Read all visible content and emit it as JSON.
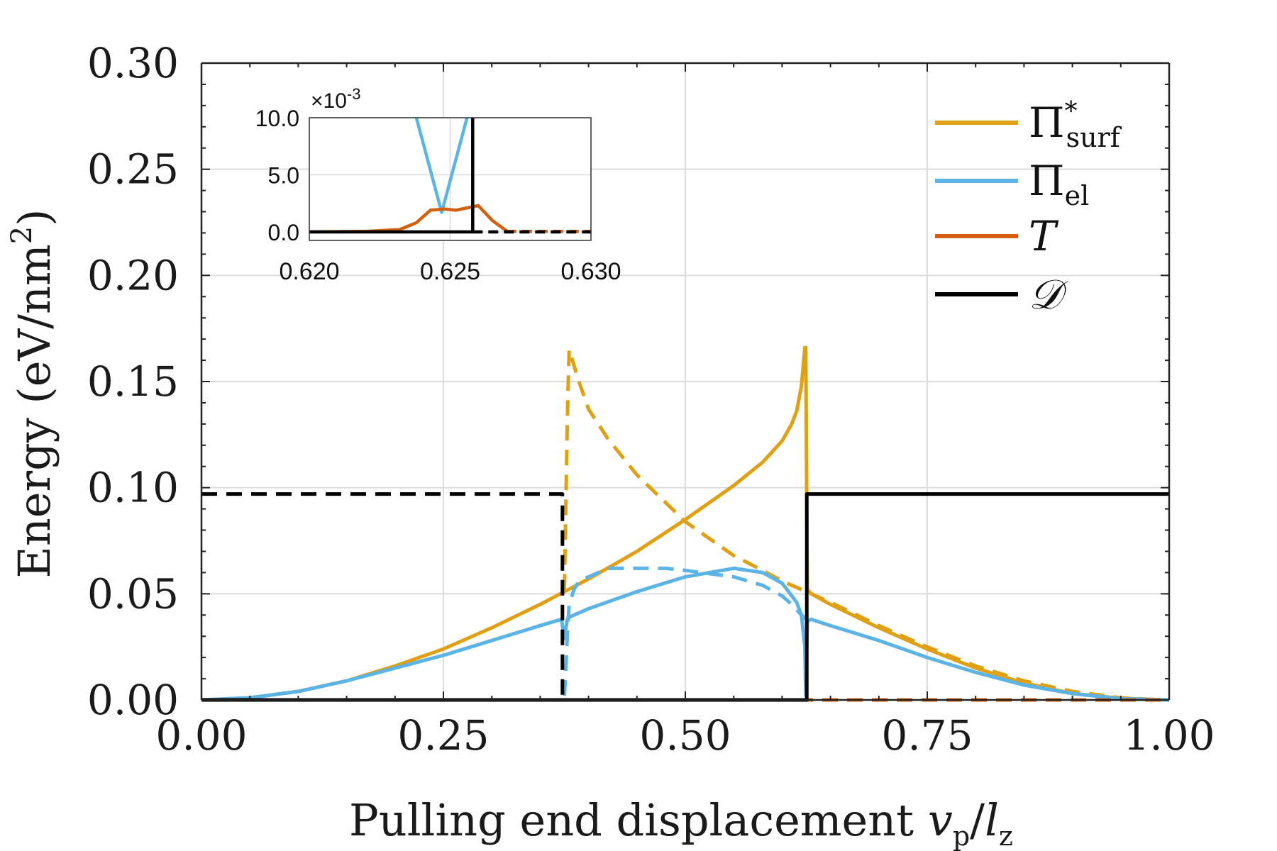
{
  "chart_data": {
    "type": "line",
    "xlabel": "Pulling end displacement",
    "xlabel_math": "v",
    "xlabel_math_sub": "p",
    "xlabel_math_div": "/",
    "xlabel_math2": "l",
    "xlabel_math2_sub": "z",
    "ylabel": "Energy (eV/nm",
    "ylabel_sup": "2",
    "ylabel_close": ")",
    "xlim": [
      0,
      1
    ],
    "ylim": [
      0,
      0.3
    ],
    "xticks": [
      "0.00",
      "0.25",
      "0.50",
      "0.75",
      "1.00"
    ],
    "yticks": [
      "0.00",
      "0.05",
      "0.10",
      "0.15",
      "0.20",
      "0.25",
      "0.30"
    ],
    "grid": true,
    "colors": {
      "surf": "#E0A015",
      "el": "#5BB4E5",
      "T": "#D35F0F",
      "D": "#000000",
      "grid": "#dcdcdc"
    },
    "legend": {
      "placement": "top-right",
      "entries": [
        {
          "key": "surf",
          "sym": "Π",
          "sup": "*",
          "sub": "surf"
        },
        {
          "key": "el",
          "sym": "Π",
          "sup": "",
          "sub": "el"
        },
        {
          "key": "T",
          "sym": "T",
          "sup": "",
          "sub": ""
        },
        {
          "key": "D",
          "sym": "𝒟",
          "sup": "",
          "sub": ""
        }
      ]
    },
    "series": [
      {
        "name": "Pi_surf solid",
        "color_key": "surf",
        "style": "solid",
        "x": [
          0,
          0.05,
          0.1,
          0.15,
          0.2,
          0.25,
          0.3,
          0.35,
          0.375,
          0.4,
          0.45,
          0.5,
          0.55,
          0.58,
          0.6,
          0.61,
          0.615,
          0.62,
          0.622,
          0.6235,
          0.6245,
          0.626,
          0.63,
          0.65,
          0.7,
          0.75,
          0.8,
          0.85,
          0.9,
          0.95,
          0.98,
          1.0
        ],
        "y": [
          0,
          0.001,
          0.004,
          0.009,
          0.016,
          0.024,
          0.034,
          0.045,
          0.051,
          0.057,
          0.07,
          0.085,
          0.101,
          0.112,
          0.122,
          0.13,
          0.136,
          0.148,
          0.158,
          0.166,
          0.166,
          0.052,
          0.05,
          0.045,
          0.034,
          0.024,
          0.015,
          0.008,
          0.003,
          0.0008,
          0.0002,
          0
        ]
      },
      {
        "name": "Pi_surf dashed",
        "color_key": "surf",
        "style": "dashed",
        "x": [
          0.375,
          0.3765,
          0.378,
          0.379,
          0.38,
          0.39,
          0.4,
          0.42,
          0.45,
          0.5,
          0.55,
          0.58,
          0.6,
          0.62,
          0.65,
          0.7,
          0.75,
          0.8,
          0.85,
          0.9,
          0.95,
          0.98,
          1.0
        ],
        "y": [
          0.052,
          0.09,
          0.13,
          0.15,
          0.165,
          0.15,
          0.137,
          0.123,
          0.106,
          0.084,
          0.068,
          0.061,
          0.056,
          0.052,
          0.046,
          0.035,
          0.025,
          0.016,
          0.009,
          0.004,
          0.001,
          0.0003,
          0
        ]
      },
      {
        "name": "Pi_el solid",
        "color_key": "el",
        "style": "solid",
        "x": [
          0,
          0.05,
          0.1,
          0.15,
          0.2,
          0.25,
          0.3,
          0.35,
          0.372,
          0.375,
          0.378,
          0.38,
          0.4,
          0.45,
          0.5,
          0.55,
          0.58,
          0.6,
          0.615,
          0.62,
          0.6235,
          0.6245,
          0.626,
          0.63,
          0.65,
          0.7,
          0.75,
          0.8,
          0.85,
          0.9,
          0.95,
          1.0
        ],
        "y": [
          0,
          0.001,
          0.004,
          0.009,
          0.015,
          0.021,
          0.028,
          0.035,
          0.038,
          0.029,
          0.038,
          0.039,
          0.043,
          0.051,
          0.058,
          0.062,
          0.06,
          0.055,
          0.046,
          0.04,
          0.025,
          0.002,
          0.037,
          0.038,
          0.035,
          0.028,
          0.02,
          0.013,
          0.007,
          0.003,
          0.0006,
          0
        ]
      },
      {
        "name": "Pi_el dashed",
        "color_key": "el",
        "style": "dashed",
        "x": [
          0.375,
          0.376,
          0.378,
          0.38,
          0.385,
          0.39,
          0.4,
          0.42,
          0.45,
          0.48,
          0.5,
          0.55,
          0.58,
          0.6,
          0.61,
          0.62,
          0.625
        ],
        "y": [
          0.002,
          0.01,
          0.03,
          0.045,
          0.052,
          0.056,
          0.058,
          0.062,
          0.062,
          0.062,
          0.061,
          0.058,
          0.054,
          0.049,
          0.045,
          0.04,
          0.038
        ]
      },
      {
        "name": "T",
        "color_key": "T",
        "style": "dashed",
        "x": [
          0,
          1.0
        ],
        "y": [
          0,
          0
        ]
      },
      {
        "name": "D solid",
        "color_key": "D",
        "style": "solid",
        "x": [
          0,
          0.375,
          0.375,
          0.6255,
          0.6255,
          1.0
        ],
        "y": [
          0,
          0,
          0,
          0,
          0.097,
          0.097
        ]
      },
      {
        "name": "D dashed",
        "color_key": "D",
        "style": "dashed",
        "x": [
          0,
          0.373,
          0.373,
          0.6255
        ],
        "y": [
          0.097,
          0.097,
          0,
          0
        ]
      }
    ],
    "inset": {
      "xlim": [
        0.62,
        0.63
      ],
      "ylim": [
        0,
        10.0
      ],
      "xticks": [
        "0.620",
        "0.625",
        "0.630"
      ],
      "yticks": [
        "0.0",
        "5.0",
        "10.0"
      ],
      "exponent_prefix": "×10",
      "exponent_power": "-3",
      "series": [
        {
          "name": "Pi_el",
          "color_key": "el",
          "style": "solid",
          "x": [
            0.6238,
            0.6247,
            0.6256
          ],
          "y": [
            10.0,
            1.7,
            10.0
          ]
        },
        {
          "name": "T solid",
          "color_key": "T",
          "style": "solid",
          "x": [
            0.62,
            0.622,
            0.6232,
            0.6238,
            0.6243,
            0.6248,
            0.6252,
            0.6256,
            0.626,
            0.6265,
            0.627
          ],
          "y": [
            0,
            0.05,
            0.2,
            0.8,
            1.9,
            2.0,
            1.9,
            2.1,
            2.3,
            1.0,
            0.1
          ]
        },
        {
          "name": "T dashed",
          "color_key": "T",
          "style": "dashed",
          "x": [
            0.627,
            0.63
          ],
          "y": [
            0.05,
            0.05
          ]
        },
        {
          "name": "D solid",
          "color_key": "D",
          "style": "solid",
          "x": [
            0.62,
            0.6258,
            0.6258
          ],
          "y": [
            0,
            0,
            10.0
          ]
        },
        {
          "name": "D dashed",
          "color_key": "D",
          "style": "dashed",
          "x": [
            0.6258,
            0.63
          ],
          "y": [
            0,
            0
          ]
        }
      ]
    }
  }
}
